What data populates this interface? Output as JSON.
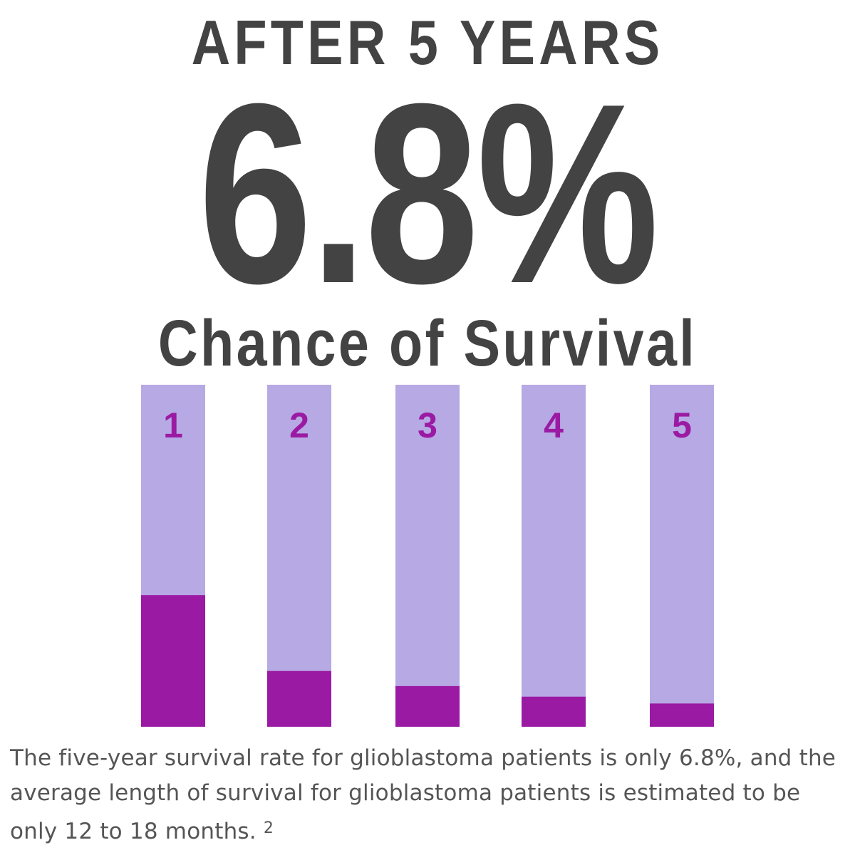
{
  "header": {
    "kicker": "AFTER 5 YEARS",
    "stat": "6.8%",
    "stat_label": "Chance of Survival"
  },
  "colors": {
    "text_dark": "#434343",
    "bar_background": "#b7a9e3",
    "bar_fill": "#9b1aa3",
    "bar_label": "#9b1aa3",
    "caption_text": "#555555"
  },
  "chart_data": {
    "type": "bar",
    "categories": [
      "1",
      "2",
      "3",
      "4",
      "5"
    ],
    "values": [
      38.5,
      16.3,
      11.9,
      8.8,
      6.8
    ],
    "ylim": [
      0,
      100
    ],
    "stacked_remainder": true,
    "grid": false,
    "legend": "none"
  },
  "caption": {
    "text": "The five-year survival rate for glioblastoma patients is only 6.8%, and the average length of survival for glioblastoma patients is estimated to be only 12 to 18 months.",
    "footnote": "2"
  }
}
